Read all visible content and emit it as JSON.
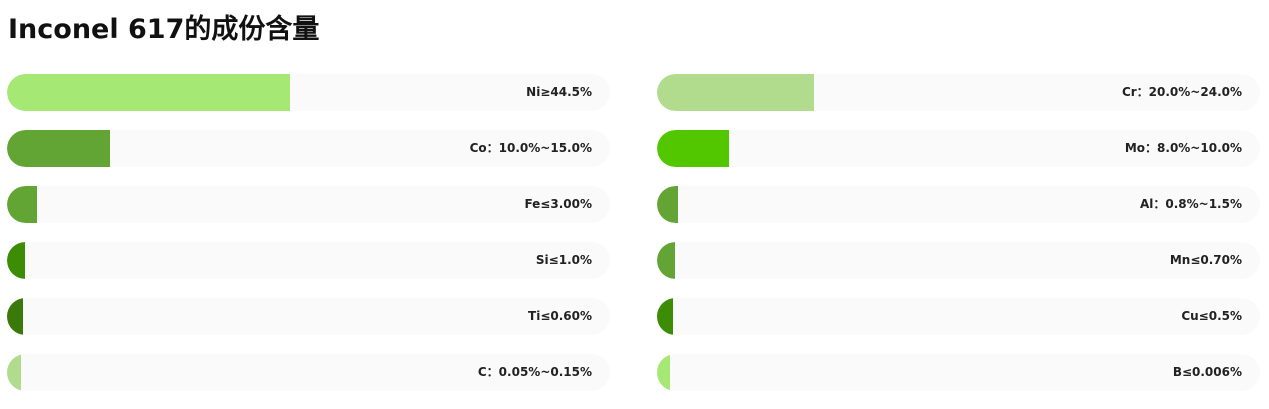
{
  "page": {
    "title": "Inconel 617的成份含量"
  },
  "chart_data": {
    "type": "bar",
    "orientation": "horizontal",
    "title": "Inconel 617的成份含量",
    "xlim": [
      0,
      100
    ],
    "unit": "%",
    "layout": "two-columns",
    "bars": [
      {
        "label": "Ni≥44.5%",
        "value": 47,
        "color": "#a6e874"
      },
      {
        "label": "Cr：20.0%~24.0%",
        "value": 26,
        "color": "#b1dc8e"
      },
      {
        "label": "Co：10.0%~15.0%",
        "value": 17,
        "color": "#63a535"
      },
      {
        "label": "Mo：8.0%~10.0%",
        "value": 12,
        "color": "#52c700"
      },
      {
        "label": "Fe≤3.00%",
        "value": 5,
        "color": "#63a535"
      },
      {
        "label": "Al：0.8%~1.5%",
        "value": 3.5,
        "color": "#63a535"
      },
      {
        "label": "Si≤1.0%",
        "value": 3,
        "color": "#3c8c06"
      },
      {
        "label": "Mn≤0.70%",
        "value": 3,
        "color": "#63a535"
      },
      {
        "label": "Ti≤0.60%",
        "value": 2.6,
        "color": "#3b7a0a"
      },
      {
        "label": "Cu≤0.5%",
        "value": 2.6,
        "color": "#3c8c06"
      },
      {
        "label": "C：0.05%~0.15%",
        "value": 2.3,
        "color": "#b1dc8e"
      },
      {
        "label": "B≤0.006%",
        "value": 2.1,
        "color": "#a6e874"
      }
    ]
  }
}
